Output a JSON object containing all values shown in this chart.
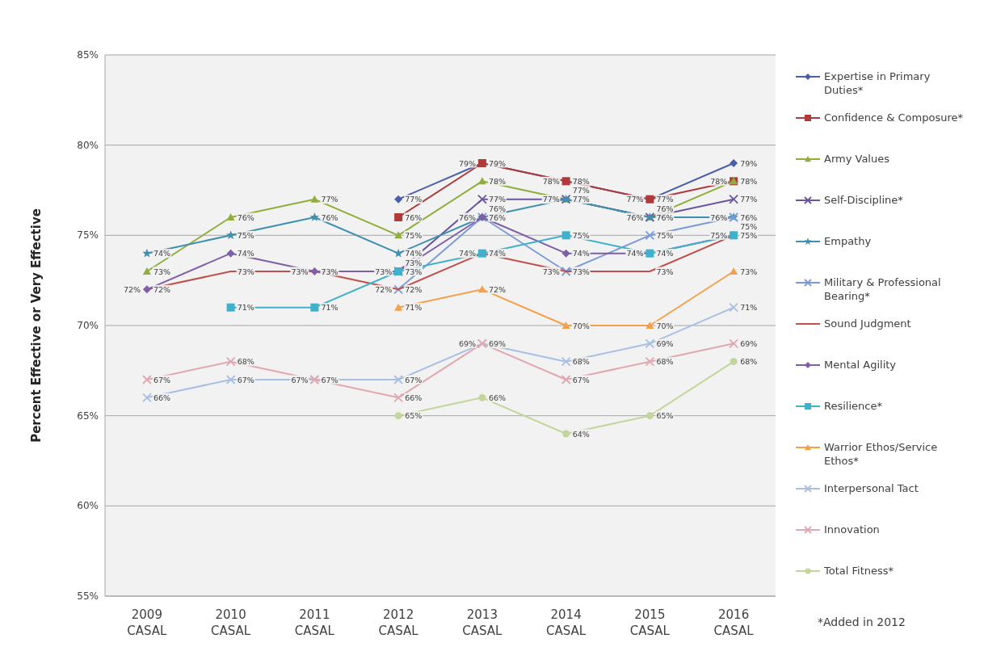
{
  "chart_data": {
    "type": "line",
    "ylabel": "Percent Effective or Very Effective",
    "categories": [
      "2009 CASAL",
      "2010 CASAL",
      "2011 CASAL",
      "2012 CASAL",
      "2013 CASAL",
      "2014 CASAL",
      "2015 CASAL",
      "2016 CASAL"
    ],
    "ylim": [
      55,
      85
    ],
    "yticks": [
      {
        "value": 55,
        "label": "55%"
      },
      {
        "value": 60,
        "label": "60%"
      },
      {
        "value": 65,
        "label": "65%"
      },
      {
        "value": 70,
        "label": "70%"
      },
      {
        "value": 75,
        "label": "75%"
      },
      {
        "value": 80,
        "label": "80%"
      },
      {
        "value": 85,
        "label": "85%"
      }
    ],
    "grid": "y",
    "legend": "right",
    "annotations": [
      "*Added in 2012"
    ],
    "series": [
      {
        "name": "Expertise in Primary Duties*",
        "color": "#4a5fa8",
        "marker": "diamond",
        "values": [
          null,
          null,
          null,
          77,
          79,
          78,
          77,
          79
        ],
        "value_labels": [
          null,
          null,
          null,
          "77%",
          "79%",
          "78%",
          "77%",
          "79%"
        ]
      },
      {
        "name": "Confidence & Composure*",
        "color": "#b03a3a",
        "marker": "square",
        "values": [
          null,
          null,
          null,
          76,
          79,
          78,
          77,
          78
        ],
        "value_labels": [
          null,
          null,
          null,
          "76%",
          "79%",
          "78%",
          "77%",
          "78%"
        ]
      },
      {
        "name": "Army Values",
        "color": "#8fae3c",
        "marker": "triangle",
        "values": [
          73,
          76,
          77,
          75,
          78,
          77,
          76,
          78
        ],
        "value_labels": [
          "73%",
          "76%",
          "77%",
          "75%",
          "78%",
          "77%",
          "76%",
          "78%"
        ]
      },
      {
        "name": "Self-Discipline*",
        "color": "#6b55a0",
        "marker": "cross",
        "values": [
          null,
          null,
          null,
          73,
          77,
          77,
          76,
          77
        ],
        "value_labels": [
          null,
          null,
          null,
          "73%",
          "77%",
          "77%",
          "76%",
          "77%"
        ]
      },
      {
        "name": "Empathy",
        "color": "#3f8fb0",
        "marker": "star",
        "values": [
          74,
          75,
          76,
          74,
          76,
          77,
          76,
          76
        ],
        "value_labels": [
          "74%",
          "75%",
          "76%",
          "74%",
          "76%",
          "77%",
          "76%",
          "76%"
        ]
      },
      {
        "name": "Military & Professional Bearing*",
        "color": "#7b9bd6",
        "marker": "cross",
        "values": [
          null,
          null,
          null,
          72,
          76,
          73,
          75,
          76
        ],
        "value_labels": [
          null,
          null,
          null,
          "72%",
          "76%",
          "73%",
          "75%",
          "76%"
        ]
      },
      {
        "name": "Sound Judgment",
        "color": "#c0504d",
        "marker": "none",
        "values": [
          72,
          73,
          73,
          72,
          74,
          73,
          73,
          75
        ],
        "value_labels": [
          "72%",
          "73%",
          "73%",
          "72%",
          "74%",
          "73%",
          "73%",
          "75%"
        ]
      },
      {
        "name": "Mental Agility",
        "color": "#7e5fa8",
        "marker": "diamond",
        "values": [
          72,
          74,
          73,
          73,
          76,
          74,
          74,
          75
        ],
        "value_labels": [
          "72%",
          "74%",
          "73%",
          "73%",
          "76%",
          "74%",
          "74%",
          "75%"
        ]
      },
      {
        "name": "Resilience*",
        "color": "#3fb1cc",
        "marker": "square",
        "values": [
          null,
          71,
          71,
          73,
          74,
          75,
          74,
          75
        ],
        "value_labels": [
          null,
          "71%",
          "71%",
          "73%",
          "74%",
          "75%",
          "74%",
          "75%"
        ]
      },
      {
        "name": "Warrior Ethos/Service Ethos*",
        "color": "#f5a04a",
        "marker": "triangle",
        "values": [
          null,
          null,
          null,
          71,
          72,
          70,
          70,
          73
        ],
        "value_labels": [
          null,
          null,
          null,
          "71%",
          "72%",
          "70%",
          "70%",
          "73%"
        ]
      },
      {
        "name": "Interpersonal Tact",
        "color": "#a9bfe3",
        "marker": "cross",
        "values": [
          66,
          67,
          67,
          67,
          69,
          68,
          69,
          71
        ],
        "value_labels": [
          "66%",
          "67%",
          "67%",
          "67%",
          "69%",
          "68%",
          "69%",
          "71%"
        ]
      },
      {
        "name": "Innovation",
        "color": "#e0a8b0",
        "marker": "cross",
        "values": [
          67,
          68,
          67,
          66,
          69,
          67,
          68,
          69
        ],
        "value_labels": [
          "67%",
          "68%",
          "67%",
          "66%",
          "69%",
          "67%",
          "68%",
          "69%"
        ]
      },
      {
        "name": "Total Fitness*",
        "color": "#c2d69b",
        "marker": "circle",
        "values": [
          null,
          null,
          null,
          65,
          66,
          64,
          65,
          68
        ],
        "value_labels": [
          null,
          null,
          null,
          "65%",
          "66%",
          "64%",
          "65%",
          "68%"
        ]
      }
    ]
  }
}
